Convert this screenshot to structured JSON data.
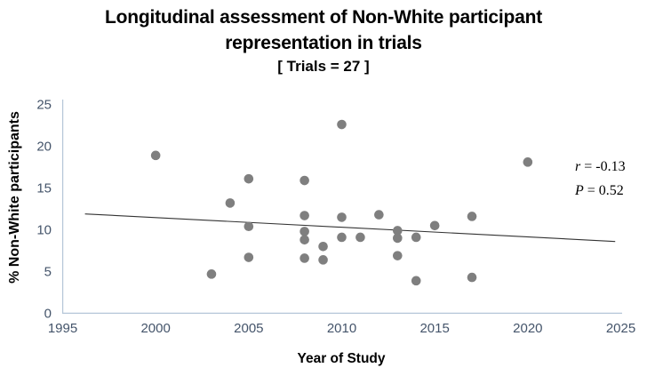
{
  "title": {
    "line1": "Longitudinal assessment of Non-White participant",
    "line2": "representation in trials",
    "line3": "[ Trials = 27 ]"
  },
  "chart_data": {
    "type": "scatter",
    "title": "Longitudinal assessment of Non-White participant representation in trials",
    "subtitle": "[ Trials = 27 ]",
    "xlabel": "Year of Study",
    "ylabel": "% Non-White participants",
    "xlim": [
      1995,
      2025
    ],
    "ylim": [
      0,
      25
    ],
    "x_ticks": [
      1995,
      2000,
      2005,
      2010,
      2015,
      2020,
      2025
    ],
    "y_ticks": [
      0,
      5,
      10,
      15,
      20,
      25
    ],
    "grid": false,
    "n_trials": 27,
    "points": [
      [
        2000,
        18.9
      ],
      [
        2003,
        4.7
      ],
      [
        2004,
        13.2
      ],
      [
        2005,
        16.1
      ],
      [
        2005,
        10.4
      ],
      [
        2005,
        6.7
      ],
      [
        2008,
        15.9
      ],
      [
        2008,
        11.7
      ],
      [
        2008,
        9.8
      ],
      [
        2008,
        8.8
      ],
      [
        2008,
        6.6
      ],
      [
        2009,
        8.0
      ],
      [
        2009,
        6.4
      ],
      [
        2010,
        22.6
      ],
      [
        2010,
        11.5
      ],
      [
        2010,
        9.1
      ],
      [
        2011,
        9.1
      ],
      [
        2012,
        11.8
      ],
      [
        2013,
        9.9
      ],
      [
        2013,
        9.0
      ],
      [
        2013,
        6.9
      ],
      [
        2014,
        9.1
      ],
      [
        2014,
        3.9
      ],
      [
        2015,
        10.5
      ],
      [
        2017,
        11.6
      ],
      [
        2017,
        4.3
      ],
      [
        2020,
        18.1
      ]
    ],
    "trend_line": {
      "x1": 1996.2,
      "y1": 11.9,
      "x2": 2024.7,
      "y2": 8.6
    },
    "annotation": {
      "r_label": "r",
      "r_value": " = -0.13",
      "p_label": "P",
      "p_value": " = 0.52"
    },
    "colors": {
      "point": "#7f7f7f",
      "trend_line": "#333333",
      "axis_line": "#b5c6d8",
      "tick_text": "#44546A",
      "title_text": "#000000"
    }
  }
}
